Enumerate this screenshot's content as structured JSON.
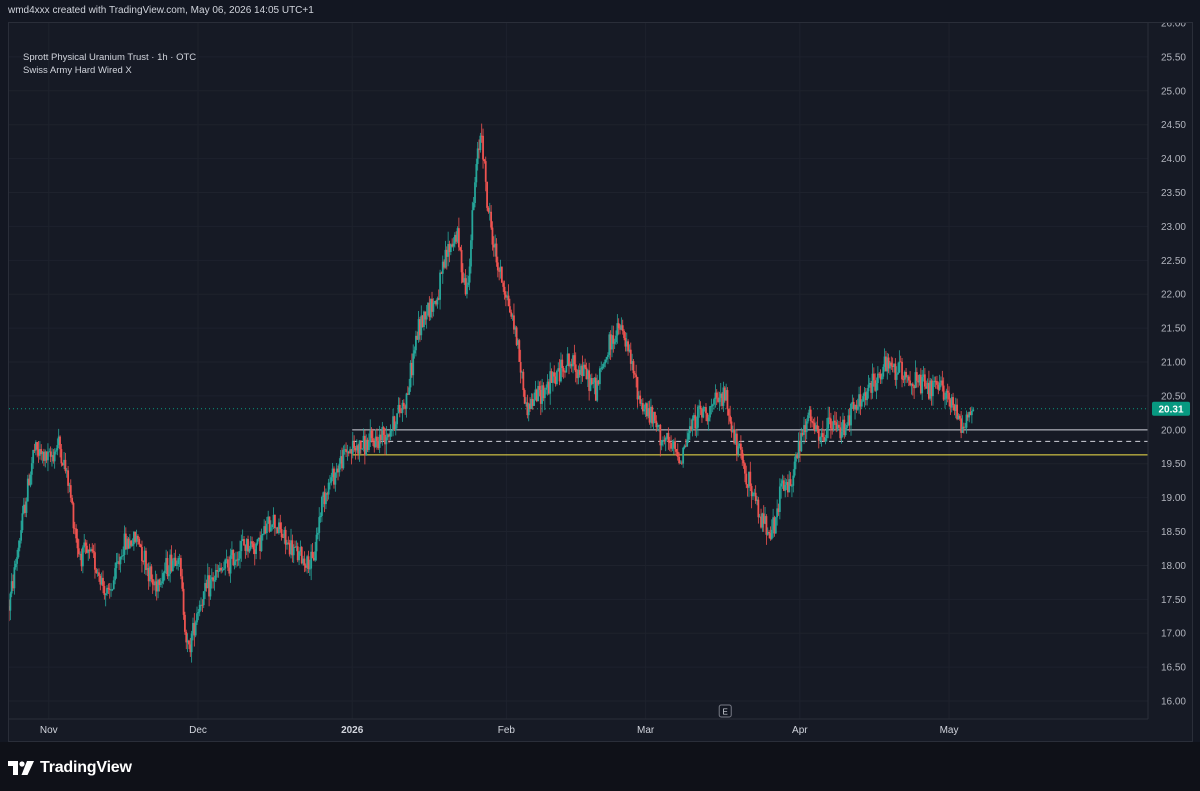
{
  "header": {
    "attribution": "wmd4xxx created with TradingView.com, May 06, 2026 14:05 UTC+1"
  },
  "legend": {
    "symbol_line": "Sprott Physical Uranium Trust · 1h · OTC",
    "indicator_line": "Swiss Army Hard Wired X"
  },
  "footer": {
    "brand": "TradingView"
  },
  "colors": {
    "background": "#161a25",
    "up": "#26a69a",
    "down": "#ef5350",
    "grid": "#1e222d",
    "last_price_bg": "#089981",
    "level_white": "#d1d4dc",
    "level_yellow": "#f5e44a"
  },
  "icons": {
    "earnings_marker": "E",
    "logo": "tradingview-logo-icon"
  },
  "chart_data": {
    "type": "candlestick",
    "title": "Sprott Physical Uranium Trust · 1h · OTC",
    "xlabel": "",
    "ylabel": "",
    "ylim": [
      15.75,
      26.0
    ],
    "yticks": [
      16.0,
      16.5,
      17.0,
      17.5,
      18.0,
      18.5,
      19.0,
      19.5,
      20.0,
      20.5,
      21.0,
      21.5,
      22.0,
      22.5,
      23.0,
      23.5,
      24.0,
      24.5,
      25.0,
      25.5,
      26.0
    ],
    "ytick_labels": [
      "16.00",
      "16.50",
      "17.00",
      "17.50",
      "18.00",
      "18.50",
      "19.00",
      "19.50",
      "20.00",
      "20.50",
      "21.00",
      "21.50",
      "22.00",
      "22.50",
      "23.00",
      "23.50",
      "24.00",
      "24.50",
      "25.00",
      "25.50",
      "26.00"
    ],
    "xticks": [
      "Nov",
      "Dec",
      "2026",
      "Feb",
      "Mar",
      "Apr",
      "May"
    ],
    "xtick_dates": [
      "2025-11-01",
      "2025-12-01",
      "2026-01-01",
      "2026-02-01",
      "2026-03-01",
      "2026-04-01",
      "2026-05-01"
    ],
    "xlim": [
      "2025-10-24",
      "2026-06-10"
    ],
    "last_price": 20.31,
    "last_price_label": "20.31",
    "levels": [
      {
        "price": 20.0,
        "style": "solid",
        "color": "#d1d4dc",
        "start": "2026-01-01"
      },
      {
        "price": 19.83,
        "style": "dashed",
        "color": "#d1d4dc",
        "start": "2026-01-01"
      },
      {
        "price": 19.63,
        "style": "solid",
        "color": "#f5e44a",
        "start": "2026-01-01"
      }
    ],
    "earnings_marker_date": "2026-03-17",
    "price_path": [
      [
        "2025-10-24",
        17.4
      ],
      [
        "2025-10-27",
        18.8
      ],
      [
        "2025-10-29",
        19.7
      ],
      [
        "2025-11-01",
        19.55
      ],
      [
        "2025-11-03",
        19.8
      ],
      [
        "2025-11-05",
        19.2
      ],
      [
        "2025-11-07",
        18.2
      ],
      [
        "2025-11-10",
        18.1
      ],
      [
        "2025-11-13",
        17.5
      ],
      [
        "2025-11-16",
        18.3
      ],
      [
        "2025-11-19",
        18.4
      ],
      [
        "2025-11-22",
        17.7
      ],
      [
        "2025-11-24",
        17.9
      ],
      [
        "2025-11-27",
        18.2
      ],
      [
        "2025-11-29",
        16.7
      ],
      [
        "2025-12-01",
        17.4
      ],
      [
        "2025-12-04",
        17.8
      ],
      [
        "2025-12-07",
        18.0
      ],
      [
        "2025-12-10",
        18.3
      ],
      [
        "2025-12-13",
        18.3
      ],
      [
        "2025-12-16",
        18.7
      ],
      [
        "2025-12-19",
        18.3
      ],
      [
        "2025-12-22",
        18.1
      ],
      [
        "2025-12-24",
        18.0
      ],
      [
        "2025-12-26",
        19.0
      ],
      [
        "2025-12-28",
        19.3
      ],
      [
        "2025-12-31",
        19.7
      ],
      [
        "2026-01-03",
        19.75
      ],
      [
        "2026-01-06",
        19.85
      ],
      [
        "2026-01-09",
        20.05
      ],
      [
        "2026-01-12",
        20.5
      ],
      [
        "2026-01-14",
        21.4
      ],
      [
        "2026-01-16",
        21.8
      ],
      [
        "2026-01-18",
        21.9
      ],
      [
        "2026-01-20",
        22.6
      ],
      [
        "2026-01-22",
        22.9
      ],
      [
        "2026-01-24",
        22.0
      ],
      [
        "2026-01-26",
        23.9
      ],
      [
        "2026-01-27",
        24.5
      ],
      [
        "2026-01-28",
        23.4
      ],
      [
        "2026-01-30",
        22.5
      ],
      [
        "2026-02-01",
        22.0
      ],
      [
        "2026-02-03",
        21.4
      ],
      [
        "2026-02-05",
        20.3
      ],
      [
        "2026-02-07",
        20.5
      ],
      [
        "2026-02-10",
        20.7
      ],
      [
        "2026-02-13",
        21.0
      ],
      [
        "2026-02-16",
        20.9
      ],
      [
        "2026-02-19",
        20.6
      ],
      [
        "2026-02-22",
        21.3
      ],
      [
        "2026-02-24",
        21.5
      ],
      [
        "2026-02-26",
        21.0
      ],
      [
        "2026-02-28",
        20.4
      ],
      [
        "2026-03-02",
        20.2
      ],
      [
        "2026-03-05",
        19.8
      ],
      [
        "2026-03-08",
        19.6
      ],
      [
        "2026-03-11",
        20.2
      ],
      [
        "2026-03-14",
        20.3
      ],
      [
        "2026-03-17",
        20.5
      ],
      [
        "2026-03-19",
        19.8
      ],
      [
        "2026-03-21",
        19.4
      ],
      [
        "2026-03-24",
        18.7
      ],
      [
        "2026-03-27",
        18.5
      ],
      [
        "2026-03-28",
        19.1
      ],
      [
        "2026-03-30",
        19.2
      ],
      [
        "2026-04-01",
        19.8
      ],
      [
        "2026-04-03",
        20.2
      ],
      [
        "2026-04-05",
        19.8
      ],
      [
        "2026-04-07",
        20.1
      ],
      [
        "2026-04-09",
        20.0
      ],
      [
        "2026-04-12",
        20.3
      ],
      [
        "2026-04-15",
        20.6
      ],
      [
        "2026-04-18",
        20.9
      ],
      [
        "2026-04-21",
        20.9
      ],
      [
        "2026-04-24",
        20.7
      ],
      [
        "2026-04-27",
        20.6
      ],
      [
        "2026-04-30",
        20.6
      ],
      [
        "2026-05-02",
        20.3
      ],
      [
        "2026-05-04",
        20.1
      ],
      [
        "2026-05-06",
        20.31
      ]
    ]
  }
}
